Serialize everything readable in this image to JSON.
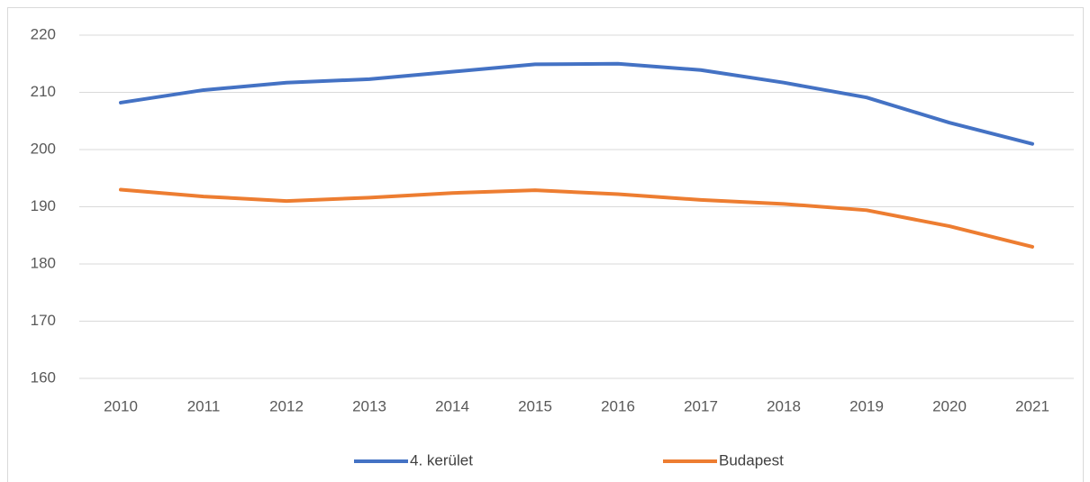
{
  "chart_data": {
    "type": "line",
    "categories": [
      "2010",
      "2011",
      "2012",
      "2013",
      "2014",
      "2015",
      "2016",
      "2017",
      "2018",
      "2019",
      "2020",
      "2021"
    ],
    "series": [
      {
        "name": "4. kerület",
        "color": "#4472c4",
        "values": [
          208.2,
          210.4,
          211.7,
          212.3,
          213.6,
          214.9,
          215.0,
          213.9,
          211.7,
          209.1,
          204.7,
          201.0
        ]
      },
      {
        "name": "Budapest",
        "color": "#ed7d31",
        "values": [
          193.0,
          191.8,
          191.0,
          191.6,
          192.4,
          192.9,
          192.2,
          191.2,
          190.5,
          189.4,
          186.6,
          183.0
        ]
      }
    ],
    "ylim": [
      160,
      220
    ],
    "yticks": [
      160,
      170,
      180,
      190,
      200,
      210,
      220
    ],
    "grid": true,
    "legend": "bottom"
  }
}
